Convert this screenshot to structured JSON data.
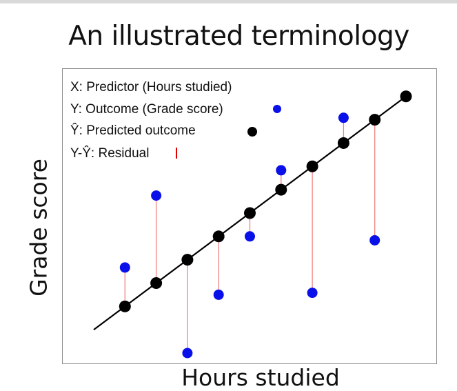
{
  "title": "An illustrated terminology",
  "ylabel": "Grade score",
  "xlabel": "Hours studied",
  "legend": [
    {
      "text": "X: Predictor (Hours studied)",
      "marker": "none"
    },
    {
      "text": "Y: Outcome (Grade score)",
      "marker": "blue-dot"
    },
    {
      "text": "Ŷ: Predicted outcome",
      "marker": "black-dot"
    },
    {
      "text": "Y-Ŷ: Residual",
      "marker": "red-line"
    }
  ],
  "colors": {
    "observed": "#0a10e8",
    "predicted": "#000000",
    "residual": "#f08080",
    "residual_legend": "#e00000",
    "regression_line": "#000000"
  },
  "chart_data": {
    "type": "scatter",
    "grid": false,
    "x": [
      1,
      2,
      3,
      4,
      5,
      6,
      7,
      8,
      9,
      10
    ],
    "observed": [
      4.3,
      8.0,
      -0.1,
      2.9,
      5.9,
      9.3,
      3.0,
      12.0,
      5.7,
      13.1
    ],
    "predicted": [
      2.3,
      3.5,
      4.7,
      5.9,
      7.1,
      8.3,
      9.5,
      10.7,
      11.9,
      13.1
    ],
    "fit_line_x": [
      0,
      10
    ],
    "fit_line_y": [
      1.1,
      13.1
    ],
    "xlim": [
      0,
      10
    ],
    "ylim": [
      -0.1,
      13.1
    ]
  }
}
